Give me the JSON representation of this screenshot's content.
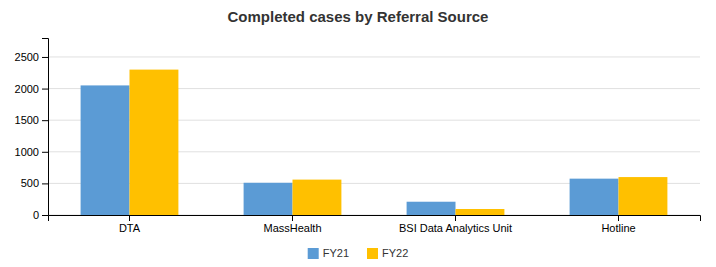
{
  "chart_data": {
    "type": "bar",
    "title": "Completed cases by Referral Source",
    "categories": [
      "DTA",
      "MassHealth",
      "BSI Data Analytics Unit",
      "Hotline"
    ],
    "series": [
      {
        "name": "FY21",
        "color": "#5B9BD5",
        "values": [
          2050,
          510,
          210,
          575
        ]
      },
      {
        "name": "FY22",
        "color": "#FFC000",
        "values": [
          2300,
          560,
          95,
          600
        ]
      }
    ],
    "ylim": [
      0,
      2800
    ],
    "yticks": [
      0,
      500,
      1000,
      1500,
      2000,
      2500
    ],
    "grid": true,
    "legend": "bottom"
  }
}
